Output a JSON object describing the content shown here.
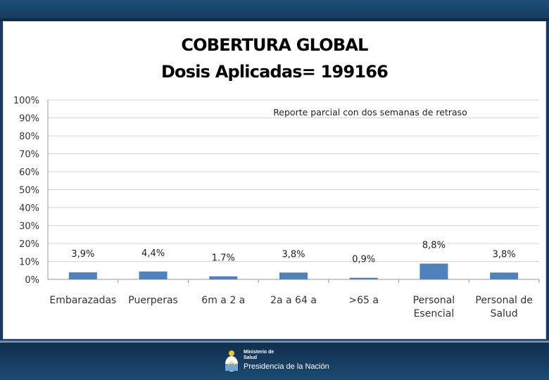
{
  "slide": {
    "title_line1": "COBERTURA GLOBAL",
    "title_line2": "Dosis Aplicadas= 199166"
  },
  "footer": {
    "ministry_line1": "Ministerio de",
    "ministry_line2": "Salud",
    "presidency": "Presidencia de la Nación"
  },
  "colors": {
    "bar": "#4f81bd",
    "gridline": "#d4d4d4"
  },
  "chart_data": {
    "type": "bar",
    "categories": [
      "Embarazadas",
      "Puerperas",
      "6m a 2 a",
      "2a a 64 a",
      ">65 a",
      "Personal Esencial",
      "Personal de Salud"
    ],
    "category_lines": [
      [
        "Embarazadas"
      ],
      [
        "Puerperas"
      ],
      [
        "6m a 2 a"
      ],
      [
        "2a a 64 a"
      ],
      [
        ">65 a"
      ],
      [
        "Personal",
        "Esencial"
      ],
      [
        "Personal de",
        "Salud"
      ]
    ],
    "values": [
      3.9,
      4.4,
      1.7,
      3.8,
      0.9,
      8.8,
      3.8
    ],
    "data_labels": [
      "3,9%",
      "4,4%",
      "1.7%",
      "3,8%",
      "0,9%",
      "8,8%",
      "3,8%"
    ],
    "yticks": [
      "0%",
      "10%",
      "20%",
      "30%",
      "40%",
      "50%",
      "60%",
      "70%",
      "80%",
      "90%",
      "100%"
    ],
    "ylim": [
      0,
      100
    ],
    "annotation": "Reporte parcial con dos semanas de retraso",
    "grid": true,
    "legend": "none"
  }
}
